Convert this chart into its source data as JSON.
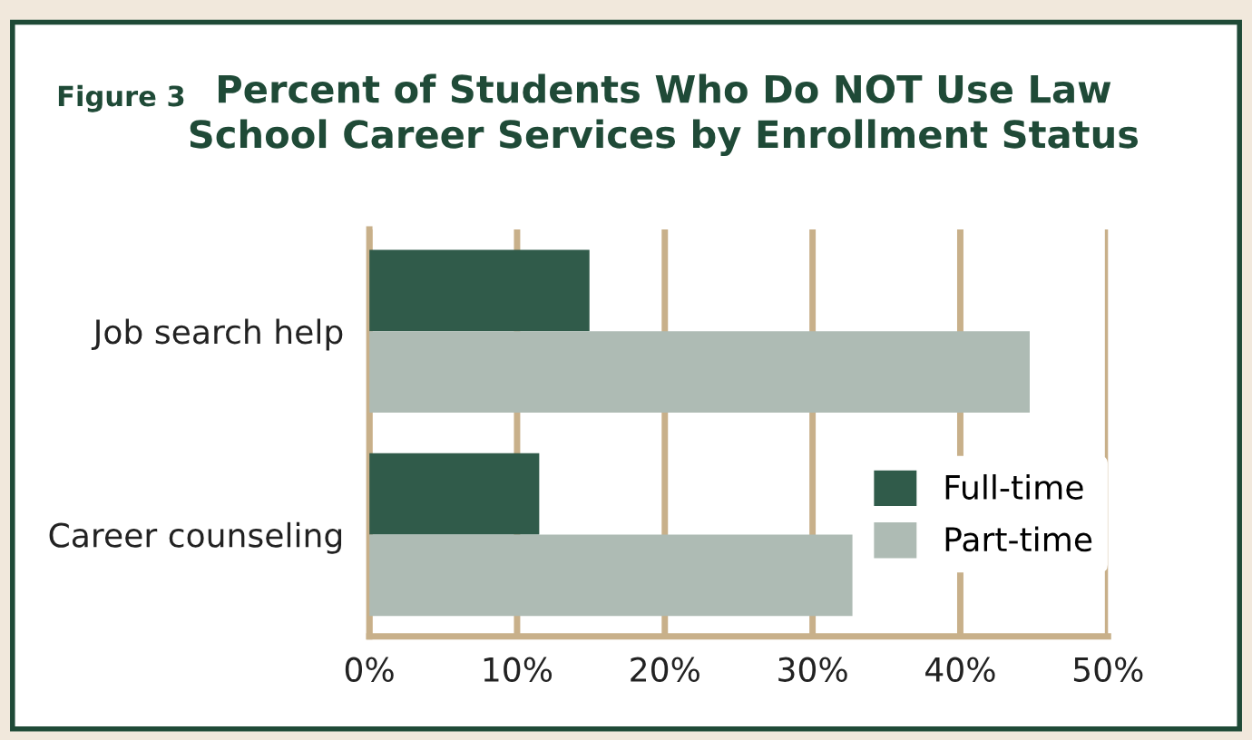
{
  "chart_data": {
    "type": "bar",
    "orientation": "horizontal",
    "title": "Percent of Students Who Do NOT Use Law\nSchool Career Services by Enrollment Status",
    "annotations": [
      "Figure 3"
    ],
    "categories": [
      "Job search help",
      "Career counseling"
    ],
    "series": [
      {
        "name": "Full-time",
        "color": "#305b4a",
        "values": [
          14.9,
          11.5
        ]
      },
      {
        "name": "Part-time",
        "color": "#aebbb4",
        "values": [
          44.7,
          32.7
        ]
      }
    ],
    "xlim": [
      0,
      50
    ],
    "xticks": [
      {
        "value": 0,
        "label": "0%"
      },
      {
        "value": 10,
        "label": "10%"
      },
      {
        "value": 20,
        "label": "20%"
      },
      {
        "value": 30,
        "label": "30%"
      },
      {
        "value": 40,
        "label": "40%"
      },
      {
        "value": 50,
        "label": "50%"
      }
    ],
    "grid": "x",
    "legend": "bottom right"
  }
}
